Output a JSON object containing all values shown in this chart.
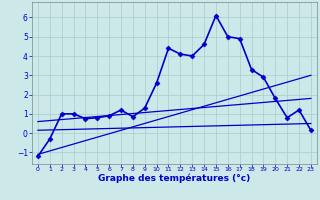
{
  "xlabel": "Graphe des températures (°c)",
  "x_ticks": [
    0,
    1,
    2,
    3,
    4,
    5,
    6,
    7,
    8,
    9,
    10,
    11,
    12,
    13,
    14,
    15,
    16,
    17,
    18,
    19,
    20,
    21,
    22,
    23
  ],
  "ylim": [
    -1.6,
    6.8
  ],
  "xlim": [
    -0.5,
    23.5
  ],
  "yticks": [
    -1,
    0,
    1,
    2,
    3,
    4,
    5,
    6
  ],
  "background_color": "#cce8e8",
  "line_color": "#0000cc",
  "grid_color": "#aacccc",
  "series1": {
    "x": [
      0,
      1,
      2,
      3,
      4,
      5,
      6,
      7,
      8,
      9,
      10,
      11,
      12,
      13,
      14,
      15,
      16,
      17,
      18,
      19,
      20,
      21,
      22,
      23
    ],
    "y": [
      -1.2,
      -0.3,
      1.0,
      1.0,
      0.75,
      0.8,
      0.9,
      1.2,
      0.85,
      1.3,
      2.6,
      4.4,
      4.1,
      4.0,
      4.6,
      6.1,
      5.0,
      4.9,
      3.3,
      2.9,
      1.8,
      0.8,
      1.2,
      0.15
    ],
    "linewidth": 1.2,
    "markersize": 2.5
  },
  "series2_x": [
    0,
    23
  ],
  "series2_y": [
    -1.1,
    3.0
  ],
  "series3_x": [
    0,
    23
  ],
  "series3_y": [
    0.6,
    1.8
  ],
  "series4_x": [
    0,
    23
  ],
  "series4_y": [
    0.15,
    0.5
  ]
}
